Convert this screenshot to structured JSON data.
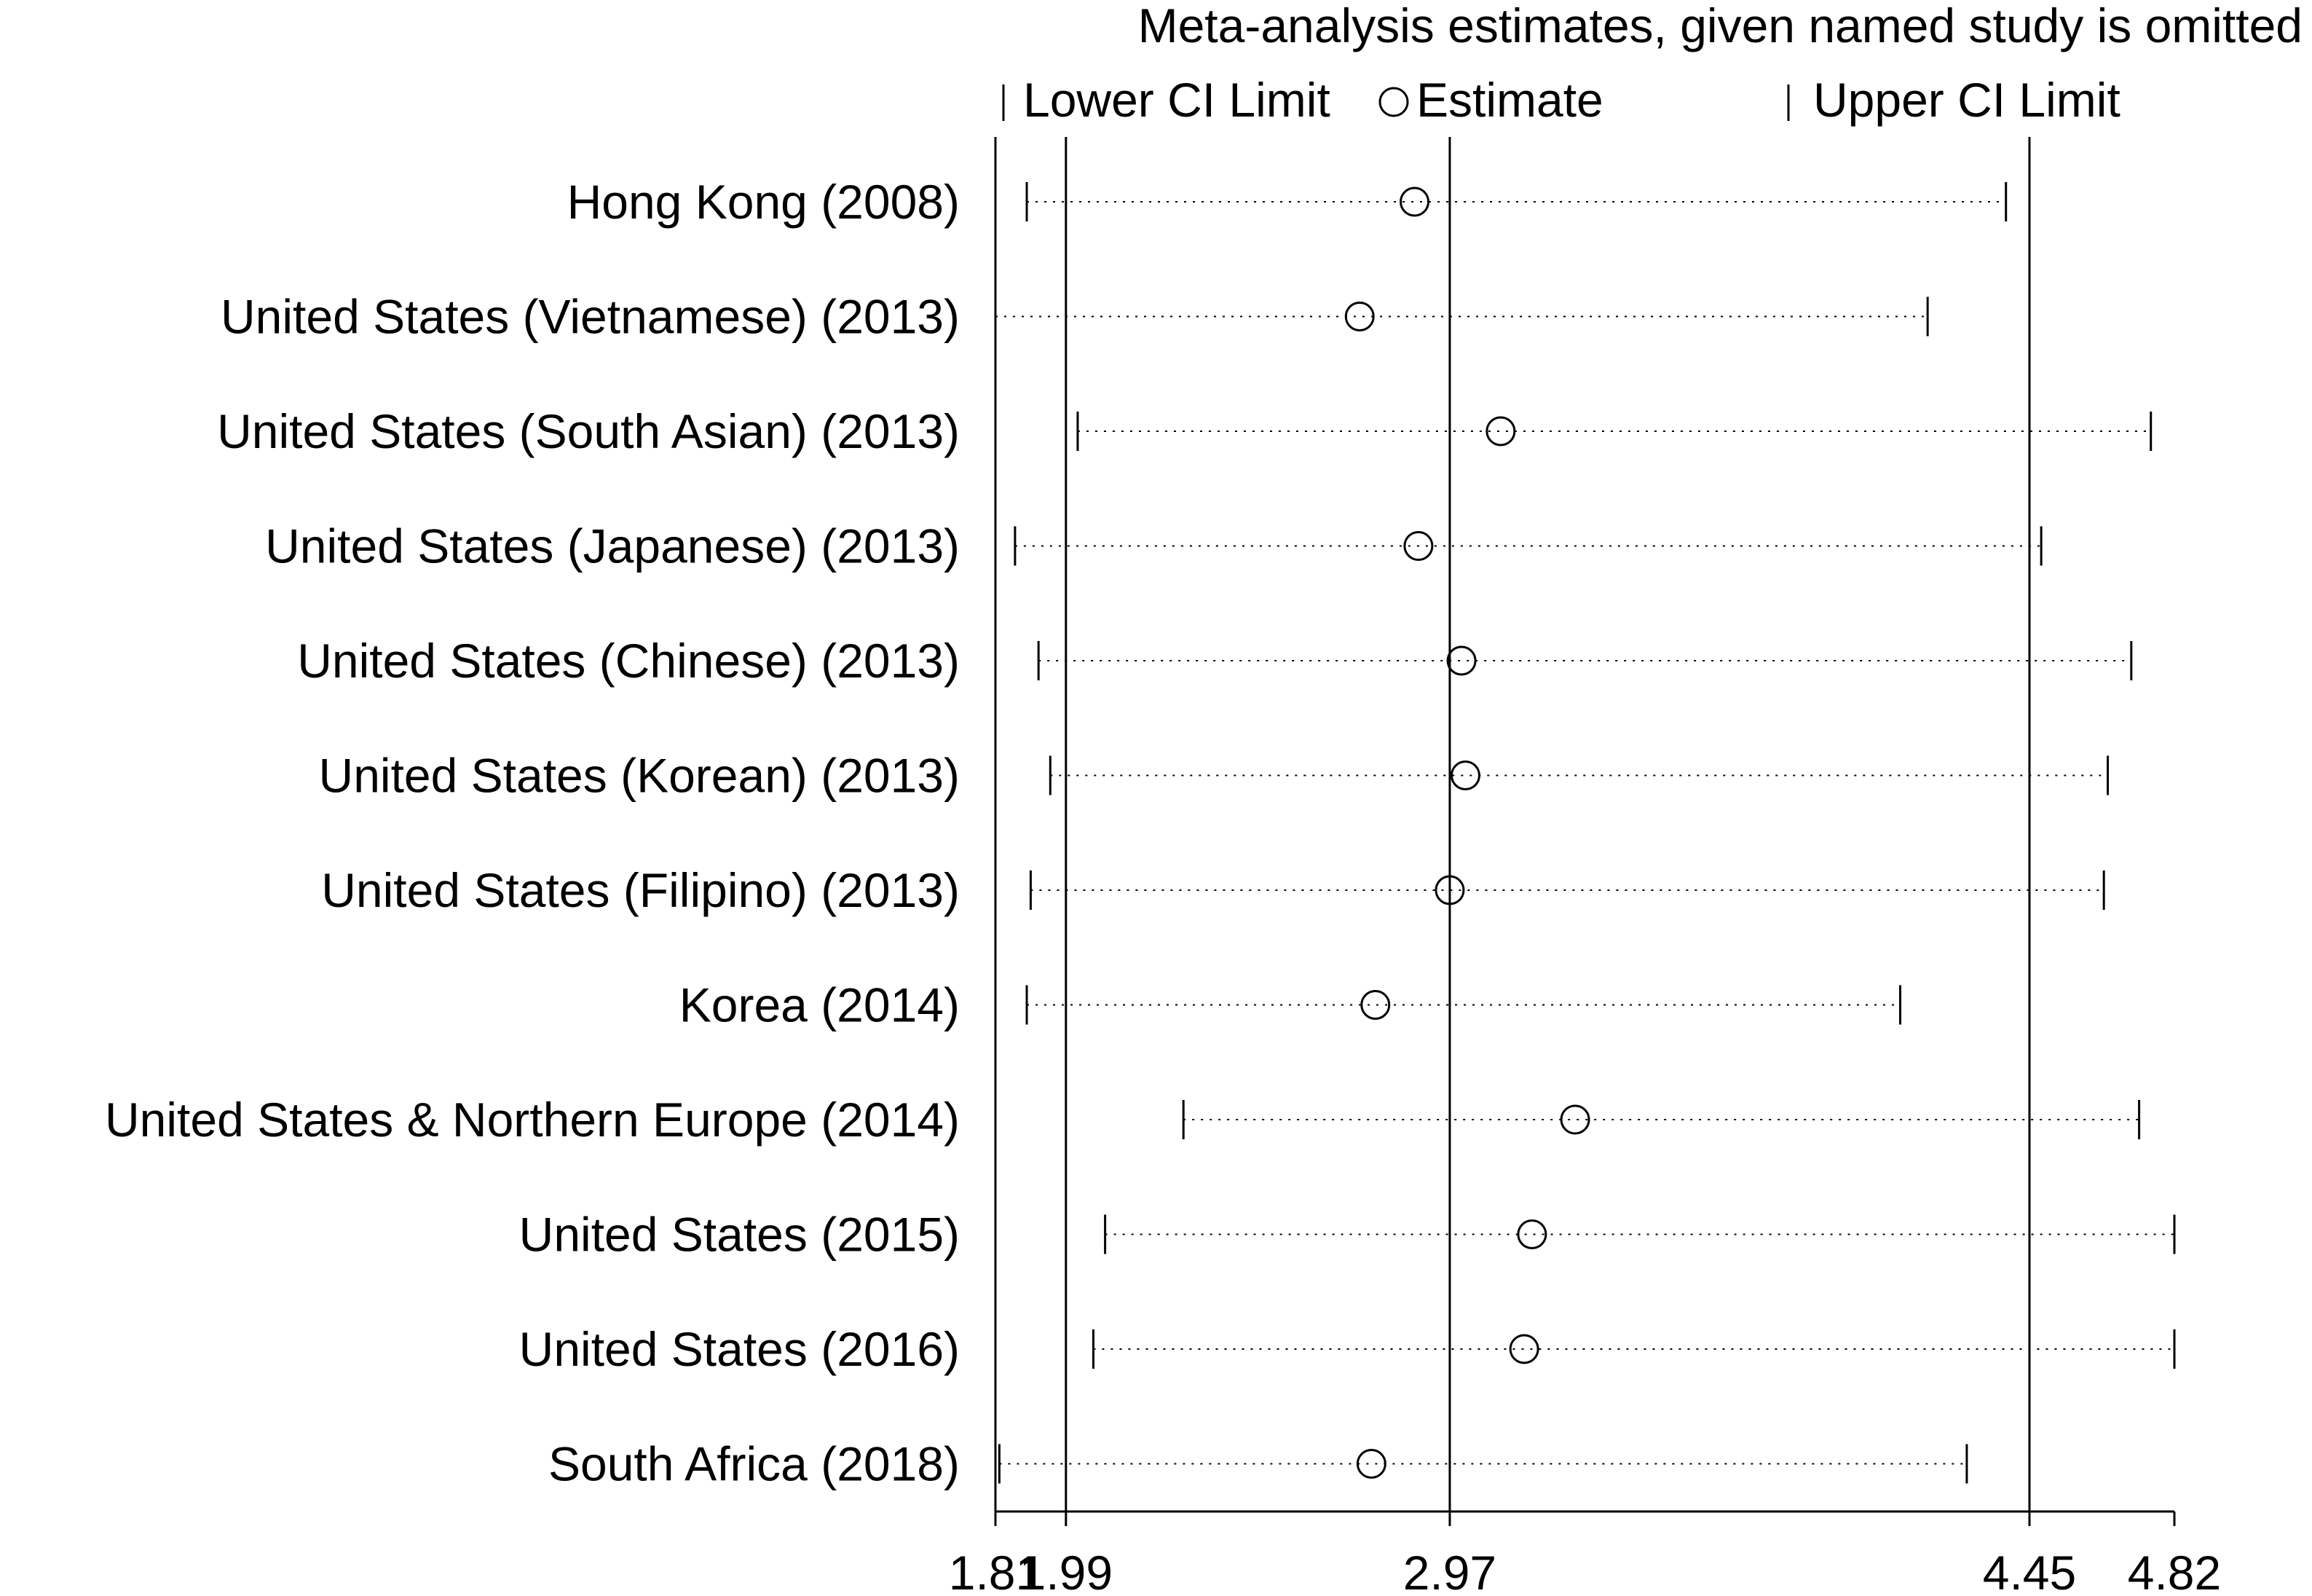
{
  "chart_data": {
    "type": "scatter",
    "title": "Meta-analysis estimates, given named study is omitted",
    "legend": {
      "placement": "top",
      "items": [
        {
          "symbol": "vertical-tick",
          "label": "Lower CI Limit"
        },
        {
          "symbol": "open-circle",
          "label": "Estimate"
        },
        {
          "symbol": "vertical-tick",
          "label": "Upper CI Limit"
        }
      ]
    },
    "xlabel": "",
    "ylabel": "",
    "xlim": [
      1.81,
      4.82
    ],
    "x_ticks": [
      1.81,
      1.99,
      2.97,
      4.45,
      4.82
    ],
    "x_tick_labels": [
      "1.81",
      "1.99",
      "2.97",
      "4.45",
      "4.82"
    ],
    "reference_lines": [
      1.99,
      2.97,
      4.45
    ],
    "studies": [
      {
        "name": "Hong Kong (2008)",
        "lower": 1.89,
        "estimate": 2.88,
        "upper": 4.39
      },
      {
        "name": "United States (Vietnamese) (2013)",
        "lower": 1.81,
        "estimate": 2.74,
        "upper": 4.19
      },
      {
        "name": "United States (South Asian) (2013)",
        "lower": 2.02,
        "estimate": 3.1,
        "upper": 4.76
      },
      {
        "name": "United States (Japanese) (2013)",
        "lower": 1.86,
        "estimate": 2.89,
        "upper": 4.48
      },
      {
        "name": "United States (Chinese) (2013)",
        "lower": 1.92,
        "estimate": 3.0,
        "upper": 4.71
      },
      {
        "name": "United States (Korean) (2013)",
        "lower": 1.95,
        "estimate": 3.01,
        "upper": 4.65
      },
      {
        "name": "United States (Filipino) (2013)",
        "lower": 1.9,
        "estimate": 2.97,
        "upper": 4.64
      },
      {
        "name": "Korea (2014)",
        "lower": 1.89,
        "estimate": 2.78,
        "upper": 4.12
      },
      {
        "name": "United States & Northern Europe (2014)",
        "lower": 2.29,
        "estimate": 3.29,
        "upper": 4.73
      },
      {
        "name": "United States (2015)",
        "lower": 2.09,
        "estimate": 3.18,
        "upper": 4.82
      },
      {
        "name": "United States (2016)",
        "lower": 2.06,
        "estimate": 3.16,
        "upper": 4.82
      },
      {
        "name": "South Africa (2018)",
        "lower": 1.82,
        "estimate": 2.77,
        "upper": 4.29
      }
    ]
  }
}
